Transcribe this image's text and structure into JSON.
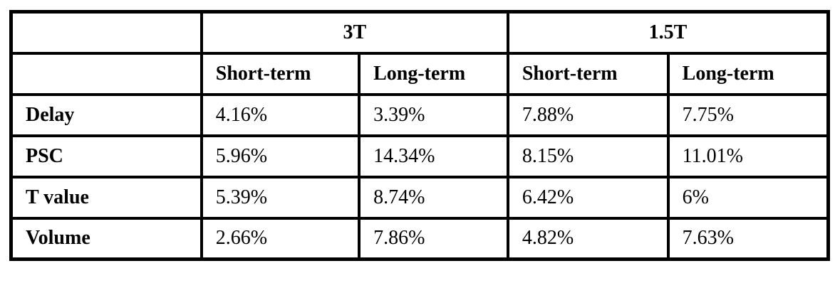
{
  "table": {
    "corner_label": "",
    "group_headers": [
      {
        "label": "3T",
        "colspan": 2
      },
      {
        "label": "1.5T",
        "colspan": 2
      }
    ],
    "sub_headers": [
      "Short-term",
      "Long-term",
      "Short-term",
      "Long-term"
    ],
    "rows": [
      {
        "label": "Delay",
        "values": [
          "4.16%",
          "3.39%",
          "7.88%",
          "7.75%"
        ]
      },
      {
        "label": "PSC",
        "values": [
          "5.96%",
          "14.34%",
          "8.15%",
          "11.01%"
        ]
      },
      {
        "label": "T value",
        "values": [
          "5.39%",
          "8.74%",
          "6.42%",
          "6%"
        ]
      },
      {
        "label": "Volume",
        "values": [
          "2.66%",
          "7.86%",
          "4.82%",
          "7.63%"
        ]
      }
    ],
    "colors": {
      "border": "#000000",
      "text": "#000000",
      "background": "#ffffff"
    }
  },
  "chart_data": {
    "type": "table",
    "title": "",
    "column_groups": [
      "3T",
      "3T",
      "1.5T",
      "1.5T"
    ],
    "columns": [
      "Short-term",
      "Long-term",
      "Short-term",
      "Long-term"
    ],
    "row_labels": [
      "Delay",
      "PSC",
      "T value",
      "Volume"
    ],
    "cells": [
      [
        "4.16%",
        "3.39%",
        "7.88%",
        "7.75%"
      ],
      [
        "5.96%",
        "14.34%",
        "8.15%",
        "11.01%"
      ],
      [
        "5.39%",
        "8.74%",
        "6.42%",
        "6%"
      ],
      [
        "2.66%",
        "7.86%",
        "4.82%",
        "7.63%"
      ]
    ]
  }
}
